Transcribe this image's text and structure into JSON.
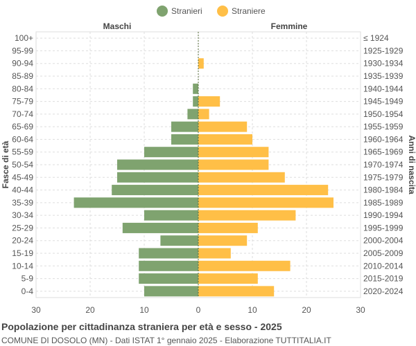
{
  "chart_data": {
    "type": "bar",
    "title": "Popolazione per cittadinanza straniera per età e sesso - 2025",
    "subtitle": "COMUNE DI DOSOLO (MN) - Dati ISTAT 1° gennaio 2025 - Elaborazione TUTTITALIA.IT",
    "ylabel_left": "Fasce di età",
    "ylabel_right": "Anni di nascita",
    "left_header": "Maschi",
    "right_header": "Femmine",
    "xlim": [
      -30,
      30
    ],
    "xticks": [
      "30",
      "20",
      "10",
      "0",
      "10",
      "20",
      "30"
    ],
    "grid": true,
    "legend_position": "top",
    "categories": [
      "100+",
      "95-99",
      "90-94",
      "85-89",
      "80-84",
      "75-79",
      "70-74",
      "65-69",
      "60-64",
      "55-59",
      "50-54",
      "45-49",
      "40-44",
      "35-39",
      "30-34",
      "25-29",
      "20-24",
      "15-19",
      "10-14",
      "5-9",
      "0-4"
    ],
    "birth_years": [
      "≤ 1924",
      "1925-1929",
      "1930-1934",
      "1935-1939",
      "1940-1944",
      "1945-1949",
      "1950-1954",
      "1955-1959",
      "1960-1964",
      "1965-1969",
      "1970-1974",
      "1975-1979",
      "1980-1984",
      "1985-1989",
      "1990-1994",
      "1995-1999",
      "2000-2004",
      "2005-2009",
      "2010-2014",
      "2015-2019",
      "2020-2024"
    ],
    "series": [
      {
        "name": "Stranieri",
        "color": "#7fa36f",
        "values": [
          0,
          0,
          0,
          0,
          1,
          1,
          2,
          5,
          5,
          10,
          15,
          15,
          16,
          23,
          10,
          14,
          7,
          11,
          11,
          11,
          10
        ]
      },
      {
        "name": "Straniere",
        "color": "#ffbf47",
        "values": [
          0,
          0,
          1,
          0,
          0,
          4,
          2,
          9,
          10,
          13,
          13,
          16,
          24,
          25,
          18,
          11,
          9,
          6,
          17,
          11,
          14
        ]
      }
    ]
  }
}
